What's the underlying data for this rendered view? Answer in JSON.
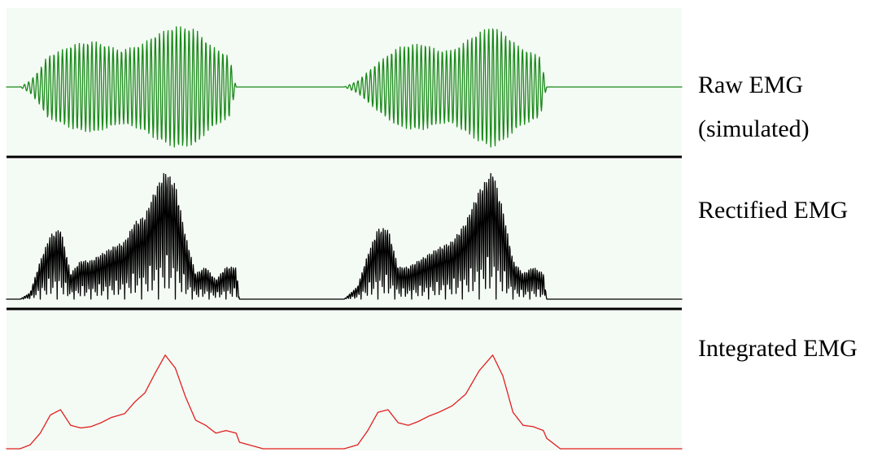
{
  "chart_data": {
    "type": "line",
    "title": "",
    "grid": false,
    "panels": [
      {
        "name": "raw",
        "label_lines": [
          "Raw EMG",
          "(simulated)"
        ],
        "color": "#1a8a1a",
        "ylim": [
          -1,
          1
        ],
        "series": {
          "x": [
            0,
            0.02,
            0.035,
            0.05,
            0.06,
            0.08,
            0.1,
            0.13,
            0.17,
            0.2,
            0.22,
            0.25,
            0.28,
            0.3,
            0.315,
            0.33,
            0.34,
            0.38,
            0.42,
            0.45,
            0.48,
            0.5,
            0.52,
            0.55,
            0.58,
            0.6,
            0.62,
            0.64,
            0.66,
            0.68,
            0.7,
            0.72,
            0.74,
            0.76,
            0.78,
            0.79,
            0.8,
            0.82,
            0.84
          ],
          "y": [
            0,
            0,
            0.1,
            0.3,
            0.5,
            0.6,
            0.7,
            0.75,
            0.6,
            0.7,
            0.85,
            1,
            0.95,
            0.7,
            0.6,
            0.5,
            0,
            0,
            0,
            0,
            0,
            0,
            0.1,
            0.4,
            0.65,
            0.7,
            0.7,
            0.6,
            0.6,
            0.75,
            0.9,
            1,
            0.85,
            0.65,
            0.55,
            0.5,
            0,
            0,
            0
          ],
          "description_of_y": "amplitude envelope of the oscillating raw signal",
          "cycles_per_unit": 160
        }
      },
      {
        "name": "rectified",
        "label_lines": [
          "Rectified EMG"
        ],
        "color": "#000000",
        "ylim": [
          0,
          1
        ],
        "series": {
          "x": [
            0,
            0.02,
            0.035,
            0.05,
            0.065,
            0.08,
            0.095,
            0.11,
            0.125,
            0.14,
            0.155,
            0.175,
            0.19,
            0.205,
            0.22,
            0.235,
            0.25,
            0.265,
            0.28,
            0.295,
            0.31,
            0.325,
            0.34,
            0.345,
            0.38,
            0.42,
            0.45,
            0.48,
            0.5,
            0.52,
            0.535,
            0.55,
            0.565,
            0.58,
            0.595,
            0.61,
            0.625,
            0.64,
            0.66,
            0.68,
            0.7,
            0.72,
            0.735,
            0.75,
            0.765,
            0.78,
            0.795,
            0.8,
            0.82,
            0.84
          ],
          "y": [
            0,
            0,
            0.05,
            0.3,
            0.5,
            0.55,
            0.2,
            0.3,
            0.3,
            0.35,
            0.4,
            0.45,
            0.6,
            0.65,
            0.85,
            1.0,
            0.9,
            0.5,
            0.2,
            0.25,
            0.15,
            0.25,
            0.25,
            0,
            0,
            0,
            0,
            0,
            0,
            0.1,
            0.35,
            0.55,
            0.55,
            0.25,
            0.25,
            0.3,
            0.35,
            0.4,
            0.45,
            0.6,
            0.85,
            1.0,
            0.7,
            0.3,
            0.2,
            0.25,
            0.2,
            0,
            0,
            0
          ],
          "description_of_y": "peak envelope of the rectified spikes",
          "cycles_per_unit": 320
        }
      },
      {
        "name": "integrated",
        "label_lines": [
          "Integrated EMG"
        ],
        "color": "#e02020",
        "ylim": [
          0,
          1
        ],
        "series": {
          "x": [
            0,
            0.02,
            0.035,
            0.05,
            0.065,
            0.08,
            0.095,
            0.11,
            0.125,
            0.14,
            0.155,
            0.175,
            0.19,
            0.205,
            0.22,
            0.235,
            0.25,
            0.265,
            0.28,
            0.295,
            0.31,
            0.325,
            0.34,
            0.345,
            0.38,
            0.42,
            0.45,
            0.48,
            0.5,
            0.52,
            0.535,
            0.55,
            0.565,
            0.58,
            0.595,
            0.61,
            0.625,
            0.64,
            0.66,
            0.68,
            0.7,
            0.72,
            0.735,
            0.75,
            0.765,
            0.78,
            0.795,
            0.8,
            0.82,
            0.84
          ],
          "y": [
            0,
            0,
            0.03,
            0.12,
            0.26,
            0.3,
            0.18,
            0.16,
            0.17,
            0.2,
            0.24,
            0.27,
            0.36,
            0.43,
            0.58,
            0.72,
            0.62,
            0.4,
            0.22,
            0.18,
            0.12,
            0.14,
            0.12,
            0.05,
            0,
            0,
            0,
            0,
            0,
            0.03,
            0.14,
            0.28,
            0.3,
            0.2,
            0.18,
            0.21,
            0.25,
            0.28,
            0.33,
            0.42,
            0.6,
            0.72,
            0.56,
            0.28,
            0.18,
            0.17,
            0.14,
            0.08,
            0,
            0
          ],
          "description_of_y": "smoothed integrated signal"
        }
      }
    ]
  }
}
